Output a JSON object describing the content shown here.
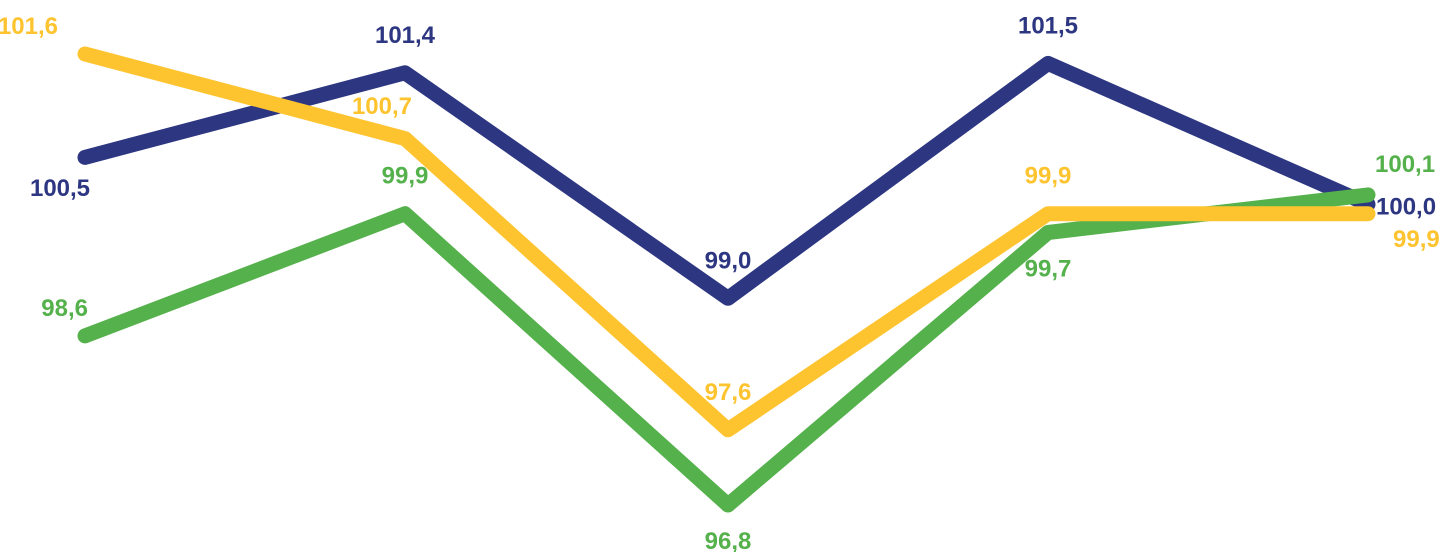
{
  "chart_data": {
    "type": "line",
    "x": [
      1,
      2,
      3,
      4,
      5
    ],
    "ylim": [
      96.3,
      101.9
    ],
    "grid": false,
    "legend": "none",
    "series": [
      {
        "color": "#2d3681",
        "values": [
          100.5,
          101.4,
          99.0,
          101.5,
          100.0
        ],
        "labels": [
          "100,5",
          "101,4",
          "99,0",
          "101,5",
          "100,0"
        ],
        "label_side": [
          "below",
          "above",
          "above",
          "above",
          "right"
        ]
      },
      {
        "color": "#55b14b",
        "values": [
          98.6,
          99.9,
          96.8,
          99.7,
          100.1
        ],
        "labels": [
          "98,6",
          "99,9",
          "96,8",
          "99,7",
          "100,1"
        ],
        "label_side": [
          "above-left",
          "above",
          "below",
          "below",
          "above-right"
        ]
      },
      {
        "color": "#fec430",
        "values": [
          101.6,
          100.7,
          97.6,
          99.9,
          99.9
        ],
        "labels": [
          "101,6",
          "100,7",
          "97,6",
          "99,9",
          "99,9"
        ],
        "label_side": [
          "above-left",
          "above-left",
          "above",
          "above",
          "below-right"
        ]
      }
    ]
  }
}
